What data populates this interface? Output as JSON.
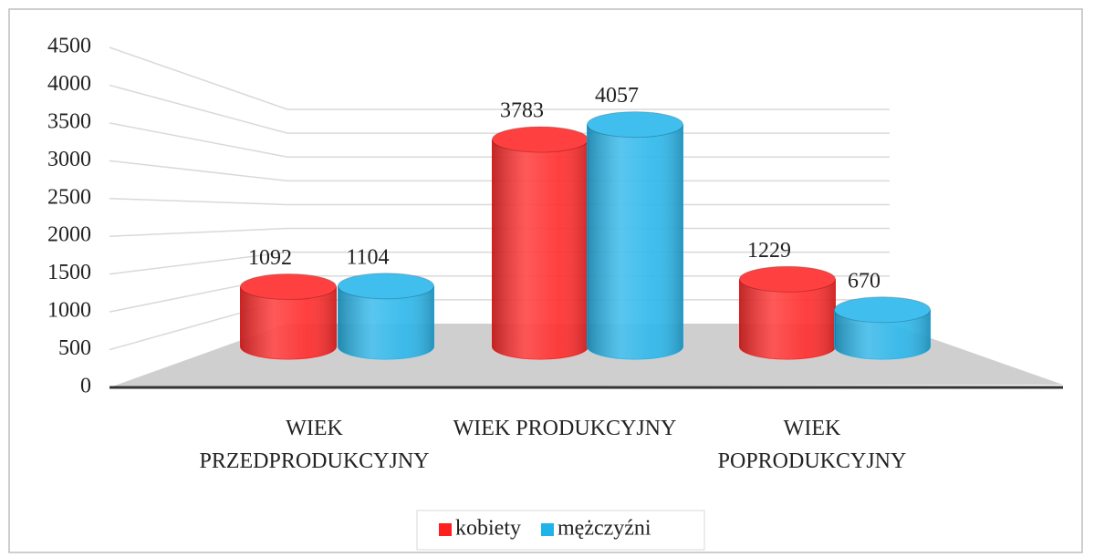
{
  "chart_data": {
    "type": "bar3d",
    "categories": [
      "WIEK PRZEDPRODUKCYJNY",
      "WIEK PRODUKCYJNY",
      "WIEK POPRODUKCYJNY"
    ],
    "series": [
      {
        "name": "kobiety",
        "color": "#ff1f1f",
        "values": [
          1092,
          3783,
          1229
        ]
      },
      {
        "name": "mężczyźni",
        "color": "#1fb3ea",
        "values": [
          1104,
          4057,
          670
        ]
      }
    ],
    "ylim": [
      0,
      4500
    ],
    "yticks": [
      0,
      500,
      1000,
      1500,
      2000,
      2500,
      3000,
      3500,
      4000,
      4500
    ],
    "grid": true,
    "legend": "bottom"
  }
}
